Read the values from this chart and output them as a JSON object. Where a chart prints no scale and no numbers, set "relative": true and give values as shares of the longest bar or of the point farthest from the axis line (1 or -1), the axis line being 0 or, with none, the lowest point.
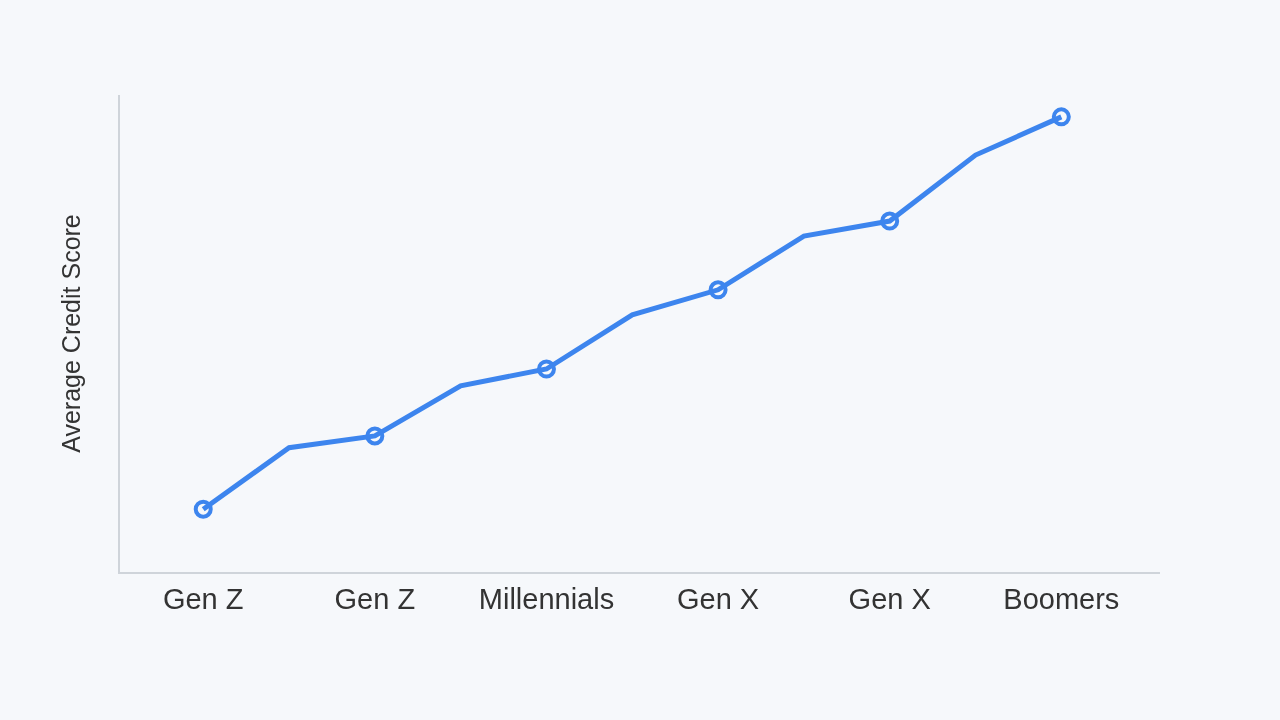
{
  "chart_data": {
    "type": "line",
    "ylabel": "Average Credit Score",
    "relative": true,
    "categories": [
      "Gen Z",
      null,
      "Gen Z",
      null,
      "Millennials",
      null,
      "Gen X",
      null,
      "Gen X",
      null,
      "Boomers"
    ],
    "series": [
      {
        "color": "#3d85ee",
        "marker": "none",
        "values": [
          0.138,
          0.273,
          0.299,
          0.409,
          0.446,
          0.565,
          0.62,
          0.738,
          0.771,
          0.916,
          1
        ]
      },
      {
        "type": "scatter",
        "color": "#3d85ee",
        "marker": "circle",
        "values": [
          0.138,
          null,
          0.299,
          null,
          0.446,
          null,
          0.62,
          null,
          0.771,
          null,
          1
        ]
      }
    ],
    "grid": false
  }
}
